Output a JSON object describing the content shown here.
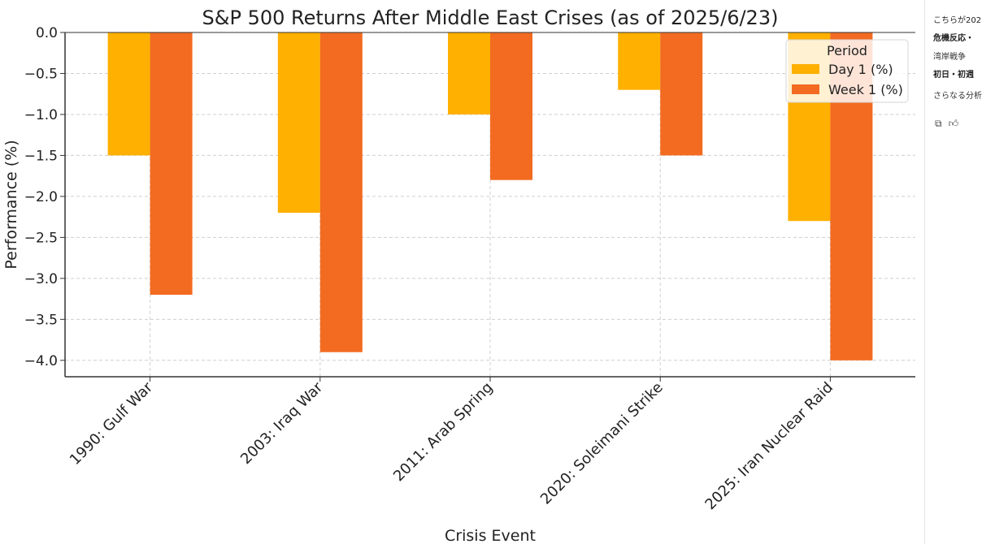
{
  "chart_data": {
    "type": "bar",
    "title": "S&P 500 Returns After Middle East Crises (as of 2025/6/23)",
    "xlabel": "Crisis Event",
    "ylabel": "Performance (%)",
    "categories": [
      "1990: Gulf War",
      "2003: Iraq War",
      "2011: Arab Spring",
      "2020: Soleimani Strike",
      "2025: Iran Nuclear Raid"
    ],
    "series": [
      {
        "name": "Day 1 (%)",
        "color": "#FFB000",
        "values": [
          -1.5,
          -2.2,
          -1.0,
          -0.7,
          -2.3
        ]
      },
      {
        "name": "Week 1 (%)",
        "color": "#F26B21",
        "values": [
          -3.2,
          -3.9,
          -1.8,
          -1.5,
          -4.0
        ]
      }
    ],
    "ylim": [
      -4.2,
      0.0
    ],
    "yticks": [
      "0.0",
      "−0.5",
      "−1.0",
      "−1.5",
      "−2.0",
      "−2.5",
      "−3.0",
      "−3.5",
      "−4.0"
    ],
    "grid": true,
    "legend": {
      "title": "Period",
      "placement": "top-right"
    }
  },
  "side_panel": {
    "lines": [
      {
        "text": "こちらが202",
        "style": "normal"
      },
      {
        "text": "危機反応・",
        "style": "bold"
      },
      {
        "text": "湾岸戦争",
        "style": "muted"
      },
      {
        "text": "初日・初週",
        "style": "bold"
      },
      {
        "text": "さらなる分析",
        "style": "muted"
      }
    ],
    "icons": [
      "copy-icon",
      "thumbs-up-icon"
    ]
  }
}
